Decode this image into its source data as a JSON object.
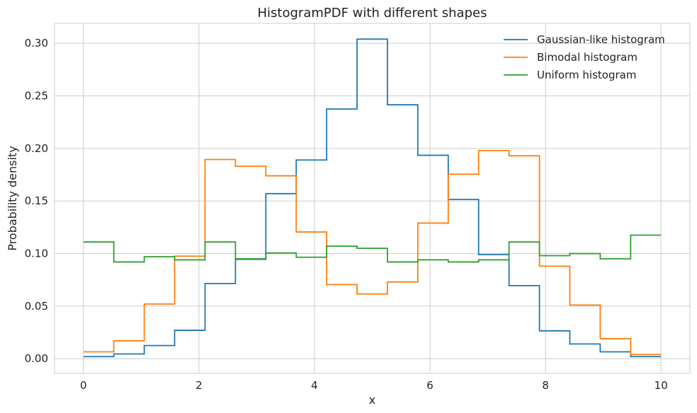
{
  "chart_data": {
    "type": "line",
    "title": "HistogramPDF with different shapes",
    "xlabel": "x",
    "ylabel": "Probability density",
    "xlim": [
      -0.5,
      10.5
    ],
    "ylim": [
      -0.014,
      0.319
    ],
    "xticks": [
      0,
      2,
      4,
      6,
      8,
      10
    ],
    "yticks": [
      0.0,
      0.05,
      0.1,
      0.15,
      0.2,
      0.25,
      0.3
    ],
    "xtick_labels": [
      "0",
      "2",
      "4",
      "6",
      "8",
      "10"
    ],
    "ytick_labels": [
      "0.00",
      "0.05",
      "0.10",
      "0.15",
      "0.20",
      "0.25",
      "0.30"
    ],
    "grid": true,
    "legend_position": "top-right",
    "bin_edges": [
      0,
      0.526,
      1.053,
      1.579,
      2.105,
      2.632,
      3.158,
      3.684,
      4.211,
      4.737,
      5.263,
      5.789,
      6.316,
      6.842,
      7.368,
      7.895,
      8.421,
      8.947,
      9.474,
      10
    ],
    "series": [
      {
        "name": "Gaussian-like histogram",
        "color": "#1f77b4",
        "values": [
          0.002,
          0.0045,
          0.0125,
          0.027,
          0.0715,
          0.0945,
          0.157,
          0.189,
          0.2375,
          0.304,
          0.2415,
          0.1935,
          0.1515,
          0.099,
          0.0695,
          0.0265,
          0.014,
          0.0065,
          0.002
        ]
      },
      {
        "name": "Bimodal histogram",
        "color": "#ff7f0e",
        "values": [
          0.0065,
          0.017,
          0.052,
          0.0975,
          0.1895,
          0.183,
          0.174,
          0.1205,
          0.0705,
          0.0615,
          0.073,
          0.129,
          0.1755,
          0.198,
          0.193,
          0.088,
          0.051,
          0.019,
          0.004
        ]
      },
      {
        "name": "Uniform histogram",
        "color": "#2ca02c",
        "values": [
          0.111,
          0.092,
          0.097,
          0.094,
          0.111,
          0.095,
          0.1005,
          0.0965,
          0.107,
          0.105,
          0.092,
          0.094,
          0.092,
          0.094,
          0.111,
          0.098,
          0.1,
          0.095,
          0.1175
        ]
      }
    ]
  }
}
